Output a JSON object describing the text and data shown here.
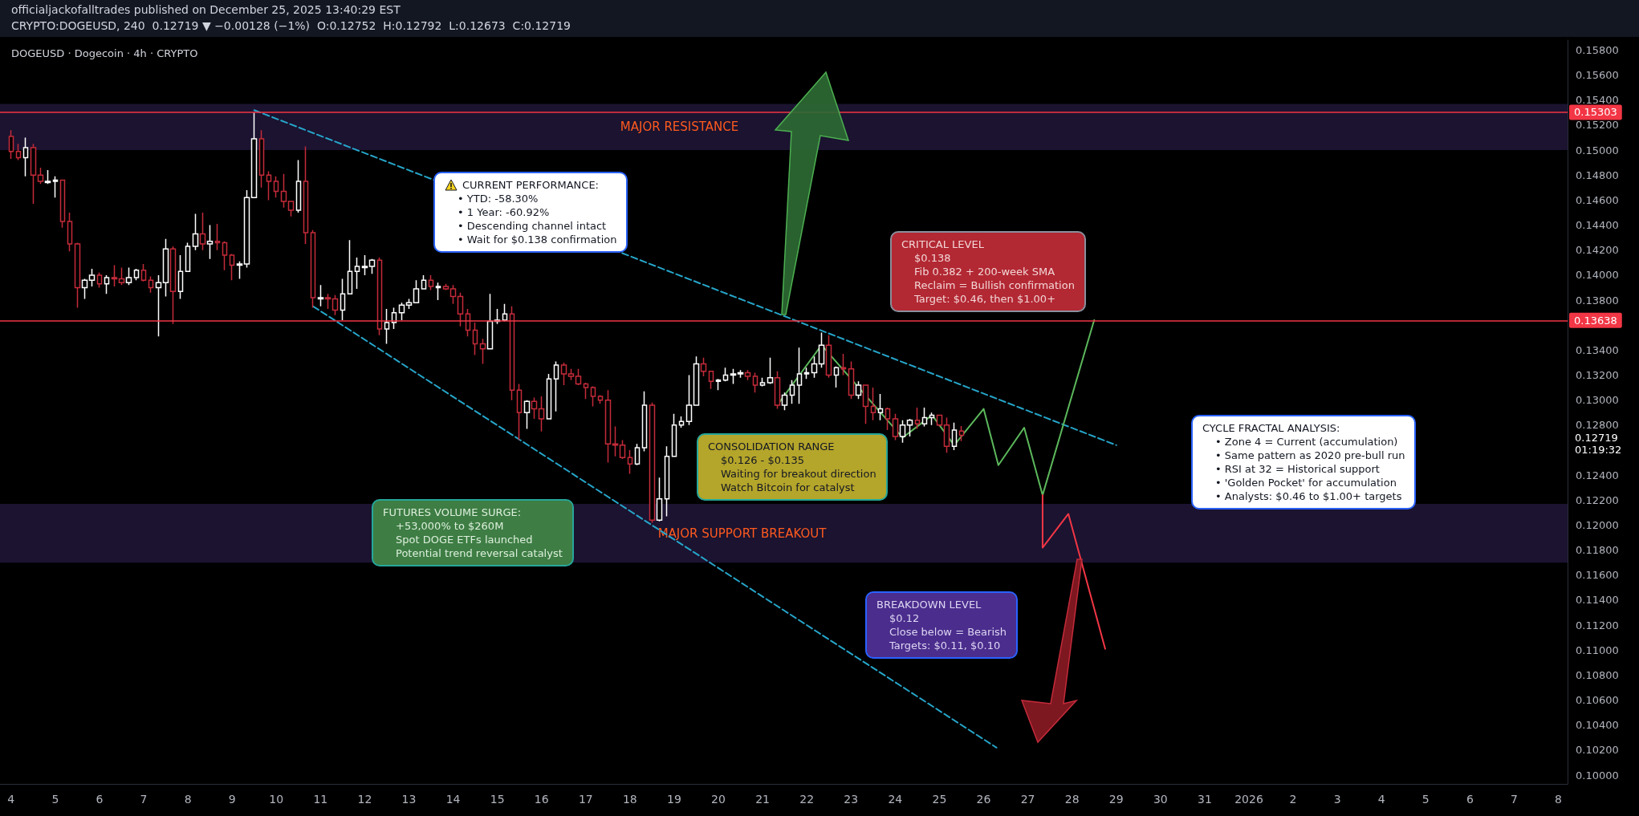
{
  "chart_data": {
    "type": "candlestick",
    "title": "officialjackofalltrades published on December 25, 2025 13:40:29 EST",
    "subtitle": "CRYPTO:DOGEUSD, 240  0.12719 ▼ −0.00128 (−1%)  O:0.12752  H:0.12792  L:0.12673  C:0.12719",
    "xlim": [
      "2025-12-03T18:00",
      "2026-01-08T05:00"
    ],
    "ylim": [
      0.0993,
      0.1588
    ],
    "xticks": [
      {
        "value": "2025-12-04",
        "label": "4"
      },
      {
        "value": "2025-12-05",
        "label": "5"
      },
      {
        "value": "2025-12-06",
        "label": "6"
      },
      {
        "value": "2025-12-07",
        "label": "7"
      },
      {
        "value": "2025-12-08",
        "label": "8"
      },
      {
        "value": "2025-12-09",
        "label": "9"
      },
      {
        "value": "2025-12-10",
        "label": "10"
      },
      {
        "value": "2025-12-11",
        "label": "11"
      },
      {
        "value": "2025-12-12",
        "label": "12"
      },
      {
        "value": "2025-12-13",
        "label": "13"
      },
      {
        "value": "2025-12-14",
        "label": "14"
      },
      {
        "value": "2025-12-15",
        "label": "15"
      },
      {
        "value": "2025-12-16",
        "label": "16"
      },
      {
        "value": "2025-12-17",
        "label": "17"
      },
      {
        "value": "2025-12-18",
        "label": "18"
      },
      {
        "value": "2025-12-19",
        "label": "19"
      },
      {
        "value": "2025-12-20",
        "label": "20"
      },
      {
        "value": "2025-12-21",
        "label": "21"
      },
      {
        "value": "2025-12-22",
        "label": "22"
      },
      {
        "value": "2025-12-23",
        "label": "23"
      },
      {
        "value": "2025-12-24",
        "label": "24"
      },
      {
        "value": "2025-12-25",
        "label": "25"
      },
      {
        "value": "2025-12-26",
        "label": "26"
      },
      {
        "value": "2025-12-27",
        "label": "27"
      },
      {
        "value": "2025-12-28",
        "label": "28"
      },
      {
        "value": "2025-12-29",
        "label": "29"
      },
      {
        "value": "2025-12-30",
        "label": "30"
      },
      {
        "value": "2025-12-31",
        "label": "31"
      },
      {
        "value": "2026-01-01",
        "label": "2026"
      },
      {
        "value": "2026-01-02",
        "label": "2"
      },
      {
        "value": "2026-01-03",
        "label": "3"
      },
      {
        "value": "2026-01-04",
        "label": "4"
      },
      {
        "value": "2026-01-05",
        "label": "5"
      },
      {
        "value": "2026-01-06",
        "label": "6"
      },
      {
        "value": "2026-01-07",
        "label": "7"
      },
      {
        "value": "2026-01-08",
        "label": "8"
      }
    ],
    "yticks": [
      {
        "value": 0.1,
        "label": "0.10000"
      },
      {
        "value": 0.102,
        "label": "0.10200"
      },
      {
        "value": 0.104,
        "label": "0.10400"
      },
      {
        "value": 0.106,
        "label": "0.10600"
      },
      {
        "value": 0.108,
        "label": "0.10800"
      },
      {
        "value": 0.11,
        "label": "0.11000"
      },
      {
        "value": 0.112,
        "label": "0.11200"
      },
      {
        "value": 0.114,
        "label": "0.11400"
      },
      {
        "value": 0.116,
        "label": "0.11600"
      },
      {
        "value": 0.118,
        "label": "0.11800"
      },
      {
        "value": 0.12,
        "label": "0.12000"
      },
      {
        "value": 0.122,
        "label": "0.12200"
      },
      {
        "value": 0.124,
        "label": "0.12400"
      },
      {
        "value": 0.128,
        "label": "0.12800"
      },
      {
        "value": 0.13,
        "label": "0.13000"
      },
      {
        "value": 0.132,
        "label": "0.13200"
      },
      {
        "value": 0.134,
        "label": "0.13400"
      },
      {
        "value": 0.138,
        "label": "0.13800"
      },
      {
        "value": 0.14,
        "label": "0.14000"
      },
      {
        "value": 0.142,
        "label": "0.14200"
      },
      {
        "value": 0.144,
        "label": "0.14400"
      },
      {
        "value": 0.146,
        "label": "0.14600"
      },
      {
        "value": 0.148,
        "label": "0.14800"
      },
      {
        "value": 0.15,
        "label": "0.15000"
      },
      {
        "value": 0.152,
        "label": "0.15200"
      },
      {
        "value": 0.154,
        "label": "0.15400"
      },
      {
        "value": 0.156,
        "label": "0.15600"
      },
      {
        "value": 0.158,
        "label": "0.15800"
      }
    ],
    "series": [
      {
        "x": [
          "2025-12-04T00:00",
          "2025-12-04T04:00",
          "2025-12-04T08:00",
          "2025-12-04T12:00",
          "2025-12-04T16:00",
          "2025-12-04T20:00",
          "2025-12-05T00:00",
          "2025-12-05T04:00",
          "2025-12-05T08:00",
          "2025-12-05T12:00",
          "2025-12-05T16:00",
          "2025-12-05T20:00",
          "2025-12-06T00:00",
          "2025-12-06T04:00",
          "2025-12-06T08:00",
          "2025-12-06T12:00",
          "2025-12-06T16:00",
          "2025-12-06T20:00",
          "2025-12-07T00:00",
          "2025-12-07T04:00",
          "2025-12-07T08:00",
          "2025-12-07T12:00",
          "2025-12-07T16:00",
          "2025-12-07T20:00",
          "2025-12-08T00:00",
          "2025-12-08T04:00",
          "2025-12-08T08:00",
          "2025-12-08T12:00",
          "2025-12-08T16:00",
          "2025-12-08T20:00",
          "2025-12-09T00:00",
          "2025-12-09T04:00",
          "2025-12-09T08:00",
          "2025-12-09T12:00",
          "2025-12-09T16:00",
          "2025-12-09T20:00",
          "2025-12-10T00:00",
          "2025-12-10T04:00",
          "2025-12-10T08:00",
          "2025-12-10T12:00",
          "2025-12-10T16:00",
          "2025-12-10T20:00",
          "2025-12-11T00:00",
          "2025-12-11T04:00",
          "2025-12-11T08:00",
          "2025-12-11T12:00",
          "2025-12-11T16:00",
          "2025-12-11T20:00",
          "2025-12-12T00:00",
          "2025-12-12T04:00",
          "2025-12-12T08:00",
          "2025-12-12T12:00",
          "2025-12-12T16:00",
          "2025-12-12T20:00",
          "2025-12-13T00:00",
          "2025-12-13T04:00",
          "2025-12-13T08:00",
          "2025-12-13T12:00",
          "2025-12-13T16:00",
          "2025-12-13T20:00",
          "2025-12-14T00:00",
          "2025-12-14T04:00",
          "2025-12-14T08:00",
          "2025-12-14T12:00",
          "2025-12-14T16:00",
          "2025-12-14T20:00",
          "2025-12-15T00:00",
          "2025-12-15T04:00",
          "2025-12-15T08:00",
          "2025-12-15T12:00",
          "2025-12-15T16:00",
          "2025-12-15T20:00",
          "2025-12-16T00:00",
          "2025-12-16T04:00",
          "2025-12-16T08:00",
          "2025-12-16T12:00",
          "2025-12-16T16:00",
          "2025-12-16T20:00",
          "2025-12-17T00:00",
          "2025-12-17T04:00",
          "2025-12-17T08:00",
          "2025-12-17T12:00",
          "2025-12-17T16:00",
          "2025-12-17T20:00",
          "2025-12-18T00:00",
          "2025-12-18T04:00",
          "2025-12-18T08:00",
          "2025-12-18T12:00",
          "2025-12-18T16:00",
          "2025-12-18T20:00",
          "2025-12-19T00:00",
          "2025-12-19T04:00",
          "2025-12-19T08:00",
          "2025-12-19T12:00",
          "2025-12-19T16:00",
          "2025-12-19T20:00",
          "2025-12-20T00:00",
          "2025-12-20T04:00",
          "2025-12-20T08:00",
          "2025-12-20T12:00",
          "2025-12-20T16:00",
          "2025-12-20T20:00",
          "2025-12-21T00:00",
          "2025-12-21T04:00",
          "2025-12-21T08:00",
          "2025-12-21T12:00",
          "2025-12-21T16:00",
          "2025-12-21T20:00",
          "2025-12-22T00:00",
          "2025-12-22T04:00",
          "2025-12-22T08:00",
          "2025-12-22T12:00",
          "2025-12-22T16:00",
          "2025-12-22T20:00",
          "2025-12-23T00:00",
          "2025-12-23T04:00",
          "2025-12-23T08:00",
          "2025-12-23T12:00",
          "2025-12-23T16:00",
          "2025-12-23T20:00",
          "2025-12-24T00:00",
          "2025-12-24T04:00",
          "2025-12-24T08:00",
          "2025-12-24T12:00",
          "2025-12-24T16:00",
          "2025-12-24T20:00",
          "2025-12-25T00:00",
          "2025-12-25T04:00",
          "2025-12-25T08:00",
          "2025-12-25T12:00"
        ],
        "ohlc": [
          [
            0.1511,
            0.1516,
            0.1493,
            0.1499
          ],
          [
            0.1499,
            0.1505,
            0.1492,
            0.1494
          ],
          [
            0.1494,
            0.151,
            0.1479,
            0.1502
          ],
          [
            0.1502,
            0.1505,
            0.1457,
            0.148
          ],
          [
            0.148,
            0.1486,
            0.1473,
            0.1475
          ],
          [
            0.1474,
            0.1484,
            0.1473,
            0.1475
          ],
          [
            0.1475,
            0.1479,
            0.1462,
            0.1476
          ],
          [
            0.1476,
            0.1476,
            0.1438,
            0.1443
          ],
          [
            0.1443,
            0.145,
            0.1419,
            0.1425
          ],
          [
            0.1425,
            0.1426,
            0.1374,
            0.139
          ],
          [
            0.139,
            0.1397,
            0.1381,
            0.1396
          ],
          [
            0.1396,
            0.1405,
            0.1391,
            0.14
          ],
          [
            0.14,
            0.1402,
            0.139,
            0.1393
          ],
          [
            0.1393,
            0.14,
            0.1385,
            0.1398
          ],
          [
            0.1398,
            0.1408,
            0.1391,
            0.1397
          ],
          [
            0.1397,
            0.1406,
            0.1392,
            0.1394
          ],
          [
            0.1394,
            0.1406,
            0.1392,
            0.1398
          ],
          [
            0.1398,
            0.1405,
            0.1396,
            0.1404
          ],
          [
            0.1404,
            0.1409,
            0.1395,
            0.1396
          ],
          [
            0.1396,
            0.1399,
            0.1386,
            0.139
          ],
          [
            0.139,
            0.14,
            0.1351,
            0.1394
          ],
          [
            0.1394,
            0.1429,
            0.1383,
            0.1421
          ],
          [
            0.1421,
            0.1423,
            0.1361,
            0.1387
          ],
          [
            0.1387,
            0.1416,
            0.1381,
            0.1403
          ],
          [
            0.1403,
            0.1426,
            0.1403,
            0.1423
          ],
          [
            0.1423,
            0.1449,
            0.142,
            0.1433
          ],
          [
            0.1433,
            0.145,
            0.142,
            0.1425
          ],
          [
            0.1425,
            0.144,
            0.1413,
            0.1427
          ],
          [
            0.1427,
            0.1441,
            0.142,
            0.1426
          ],
          [
            0.1426,
            0.1427,
            0.1404,
            0.1416
          ],
          [
            0.1416,
            0.1417,
            0.1396,
            0.1408
          ],
          [
            0.1408,
            0.1411,
            0.1397,
            0.1409
          ],
          [
            0.1409,
            0.1468,
            0.1406,
            0.1462
          ],
          [
            0.1462,
            0.153,
            0.1462,
            0.1509
          ],
          [
            0.1509,
            0.1516,
            0.147,
            0.148
          ],
          [
            0.148,
            0.1483,
            0.146,
            0.1475
          ],
          [
            0.1475,
            0.1479,
            0.1462,
            0.1467
          ],
          [
            0.1467,
            0.1481,
            0.1454,
            0.1459
          ],
          [
            0.1459,
            0.1459,
            0.1447,
            0.1452
          ],
          [
            0.1452,
            0.1492,
            0.145,
            0.1475
          ],
          [
            0.1475,
            0.1503,
            0.1425,
            0.1434
          ],
          [
            0.1434,
            0.1436,
            0.1374,
            0.1382
          ],
          [
            0.1381,
            0.1392,
            0.1375,
            0.1382
          ],
          [
            0.1382,
            0.1385,
            0.1373,
            0.1381
          ],
          [
            0.1381,
            0.1384,
            0.1368,
            0.1372
          ],
          [
            0.1372,
            0.1397,
            0.1364,
            0.1385
          ],
          [
            0.1385,
            0.1428,
            0.1385,
            0.1403
          ],
          [
            0.1403,
            0.1414,
            0.1389,
            0.1407
          ],
          [
            0.1406,
            0.1416,
            0.14,
            0.1407
          ],
          [
            0.1407,
            0.1413,
            0.1401,
            0.1412
          ],
          [
            0.1412,
            0.1414,
            0.1352,
            0.1357
          ],
          [
            0.1357,
            0.1373,
            0.1345,
            0.1362
          ],
          [
            0.1362,
            0.1374,
            0.1357,
            0.137
          ],
          [
            0.137,
            0.1378,
            0.1364,
            0.1376
          ],
          [
            0.1376,
            0.1381,
            0.1373,
            0.1378
          ],
          [
            0.1378,
            0.1396,
            0.1378,
            0.1389
          ],
          [
            0.1389,
            0.14,
            0.1389,
            0.1396
          ],
          [
            0.1396,
            0.14,
            0.1388,
            0.1391
          ],
          [
            0.139,
            0.1394,
            0.138,
            0.1391
          ],
          [
            0.1391,
            0.1393,
            0.1388,
            0.1389
          ],
          [
            0.1389,
            0.1392,
            0.1377,
            0.1383
          ],
          [
            0.1383,
            0.1386,
            0.1359,
            0.1369
          ],
          [
            0.1369,
            0.1373,
            0.1351,
            0.1356
          ],
          [
            0.1356,
            0.1362,
            0.1336,
            0.1345
          ],
          [
            0.1345,
            0.1349,
            0.1329,
            0.1341
          ],
          [
            0.1341,
            0.1385,
            0.1341,
            0.1363
          ],
          [
            0.1363,
            0.1373,
            0.1361,
            0.1364
          ],
          [
            0.1364,
            0.1377,
            0.1363,
            0.1369
          ],
          [
            0.1369,
            0.1375,
            0.13,
            0.1308
          ],
          [
            0.1308,
            0.1313,
            0.1268,
            0.129
          ],
          [
            0.129,
            0.13,
            0.1277,
            0.1299
          ],
          [
            0.1299,
            0.1302,
            0.1285,
            0.1293
          ],
          [
            0.1293,
            0.1303,
            0.1275,
            0.1285
          ],
          [
            0.1285,
            0.1321,
            0.1285,
            0.1317
          ],
          [
            0.1317,
            0.1331,
            0.1291,
            0.1328
          ],
          [
            0.1328,
            0.133,
            0.1312,
            0.1321
          ],
          [
            0.1321,
            0.1325,
            0.1316,
            0.1319
          ],
          [
            0.1319,
            0.1325,
            0.1312,
            0.1313
          ],
          [
            0.1313,
            0.1314,
            0.1301,
            0.131
          ],
          [
            0.131,
            0.1311,
            0.1295,
            0.1303
          ],
          [
            0.1303,
            0.1304,
            0.1297,
            0.13
          ],
          [
            0.13,
            0.1308,
            0.125,
            0.1265
          ],
          [
            0.1265,
            0.1279,
            0.1255,
            0.1264
          ],
          [
            0.1264,
            0.1268,
            0.1253,
            0.1254
          ],
          [
            0.1254,
            0.126,
            0.1241,
            0.1249
          ],
          [
            0.1249,
            0.1265,
            0.1248,
            0.1262
          ],
          [
            0.1262,
            0.1307,
            0.1259,
            0.1296
          ],
          [
            0.1296,
            0.1298,
            0.1202,
            0.1204
          ],
          [
            0.1204,
            0.1238,
            0.1203,
            0.1221
          ],
          [
            0.1221,
            0.1263,
            0.1207,
            0.1255
          ],
          [
            0.1255,
            0.1289,
            0.1255,
            0.128
          ],
          [
            0.128,
            0.1287,
            0.1278,
            0.1283
          ],
          [
            0.1283,
            0.132,
            0.128,
            0.1296
          ],
          [
            0.1296,
            0.1335,
            0.1296,
            0.1329
          ],
          [
            0.1329,
            0.1334,
            0.1319,
            0.1323
          ],
          [
            0.1323,
            0.1323,
            0.1309,
            0.1315
          ],
          [
            0.1315,
            0.1317,
            0.1308,
            0.1316
          ],
          [
            0.1316,
            0.1326,
            0.1315,
            0.132
          ],
          [
            0.132,
            0.1325,
            0.1313,
            0.1321
          ],
          [
            0.1321,
            0.1324,
            0.1318,
            0.1322
          ],
          [
            0.1322,
            0.1324,
            0.1316,
            0.1319
          ],
          [
            0.1319,
            0.1322,
            0.1306,
            0.1312
          ],
          [
            0.1312,
            0.1318,
            0.1311,
            0.1314
          ],
          [
            0.1314,
            0.1334,
            0.1313,
            0.1318
          ],
          [
            0.1318,
            0.1323,
            0.1293,
            0.1296
          ],
          [
            0.1296,
            0.1306,
            0.1292,
            0.1304
          ],
          [
            0.1304,
            0.1316,
            0.1297,
            0.1312
          ],
          [
            0.1312,
            0.1342,
            0.1297,
            0.1321
          ],
          [
            0.1321,
            0.1326,
            0.1317,
            0.1322
          ],
          [
            0.1322,
            0.1335,
            0.1318,
            0.1329
          ],
          [
            0.1329,
            0.1354,
            0.1326,
            0.1344
          ],
          [
            0.1344,
            0.1352,
            0.1318,
            0.132
          ],
          [
            0.132,
            0.1327,
            0.131,
            0.1326
          ],
          [
            0.1326,
            0.1337,
            0.132,
            0.1325
          ],
          [
            0.1325,
            0.1331,
            0.1301,
            0.1304
          ],
          [
            0.1304,
            0.1315,
            0.1301,
            0.1312
          ],
          [
            0.1312,
            0.1312,
            0.1281,
            0.1295
          ],
          [
            0.1295,
            0.131,
            0.1284,
            0.129
          ],
          [
            0.129,
            0.1305,
            0.1284,
            0.1293
          ],
          [
            0.1293,
            0.1294,
            0.1276,
            0.1285
          ],
          [
            0.1285,
            0.1289,
            0.1268,
            0.1271
          ],
          [
            0.1271,
            0.1284,
            0.1266,
            0.128
          ],
          [
            0.128,
            0.1285,
            0.1271,
            0.1284
          ],
          [
            0.1284,
            0.1294,
            0.1277,
            0.1281
          ],
          [
            0.1281,
            0.1294,
            0.1279,
            0.1286
          ],
          [
            0.1286,
            0.129,
            0.128,
            0.1288
          ],
          [
            0.1288,
            0.1288,
            0.1279,
            0.128
          ],
          [
            0.128,
            0.1286,
            0.1258,
            0.1263
          ],
          [
            0.1263,
            0.1282,
            0.126,
            0.1276
          ],
          [
            0.12752,
            0.12792,
            0.12673,
            0.12719
          ]
        ]
      },
      {
        "type": "line",
        "color": "#26a5c9",
        "line_style": "dashed",
        "x": [
          "2025-12-09T12:00",
          "2025-12-29T00:00"
        ],
        "values": [
          0.1532,
          0.1264
        ]
      },
      {
        "type": "line",
        "color": "#26a5c9",
        "line_style": "dashed",
        "x": [
          "2025-12-10T20:00",
          "2025-12-26T07:00"
        ],
        "values": [
          0.1375,
          0.1022
        ]
      },
      {
        "type": "line",
        "color": "#5cb85c",
        "line_style": "solid",
        "x": [
          "2025-12-21T08:00",
          "2025-12-22T08:00",
          "2025-12-24T04:00",
          "2025-12-24T20:00",
          "2025-12-25T08:00",
          "2025-12-26T00:00",
          "2025-12-26T08:00",
          "2025-12-26T22:00",
          "2025-12-27T08:00",
          "2025-12-28T12:00"
        ],
        "values": [
          0.1296,
          0.1344,
          0.127,
          0.1288,
          0.1264,
          0.1293,
          0.1248,
          0.1278,
          0.1224,
          0.1364
        ]
      },
      {
        "type": "line",
        "color": "#f23645",
        "line_style": "solid",
        "x": [
          "2025-12-27T08:00",
          "2025-12-27T08:00",
          "2025-12-27T22:00",
          "2025-12-28T18:00"
        ],
        "values": [
          0.1224,
          0.1182,
          0.1209,
          0.1101
        ]
      }
    ],
    "ref_lines": [
      {
        "axis": "y",
        "value": 0.15303,
        "label": "0.15303",
        "color": "#f23645"
      },
      {
        "axis": "y",
        "value": 0.13638,
        "label": "0.13638",
        "color": "#f23645"
      }
    ],
    "bands": [
      {
        "axis": "y",
        "from": 0.15,
        "to": 0.1537,
        "label": "MAJOR RESISTANCE",
        "color": "#1b1330"
      },
      {
        "axis": "y",
        "from": 0.117,
        "to": 0.1217,
        "label": "MAJOR SUPPORT BREAKOUT",
        "color": "#1b1330"
      }
    ],
    "annotations": [
      "DOGEUSD · Dogecoin · 4h · CRYPTO",
      "CURRENT PERFORMANCE:\n• YTD: -58.30%\n• 1 Year: -60.92%\n• Descending channel intact\n• Wait for $0.138 confirmation",
      "CRITICAL LEVEL\n$0.138\nFib 0.382 + 200-week SMA\nReclaim = Bullish confirmation\nTarget: $0.46, then $1.00+",
      "CONSOLIDATION RANGE\n$0.126 - $0.135\nWaiting for breakout direction\nWatch Bitcoin for catalyst",
      "FUTURES VOLUME SURGE:\n+53,000% to $260M\nSpot DOGE ETFs launched\nPotential trend reversal catalyst",
      "BREAKDOWN LEVEL\n$0.12\nClose below = Bearish\nTargets: $0.11, $0.10",
      "CYCLE FRACTAL ANALYSIS:\n• Zone 4 = Current (accumulation)\n• Same pattern as 2020 pre-bull run\n• RSI at 32 = Historical support\n• 'Golden Pocket' for accumulation\n• Analysts: $0.46 to $1.00+ targets",
      "0.12719\n01:19:32"
    ]
  }
}
